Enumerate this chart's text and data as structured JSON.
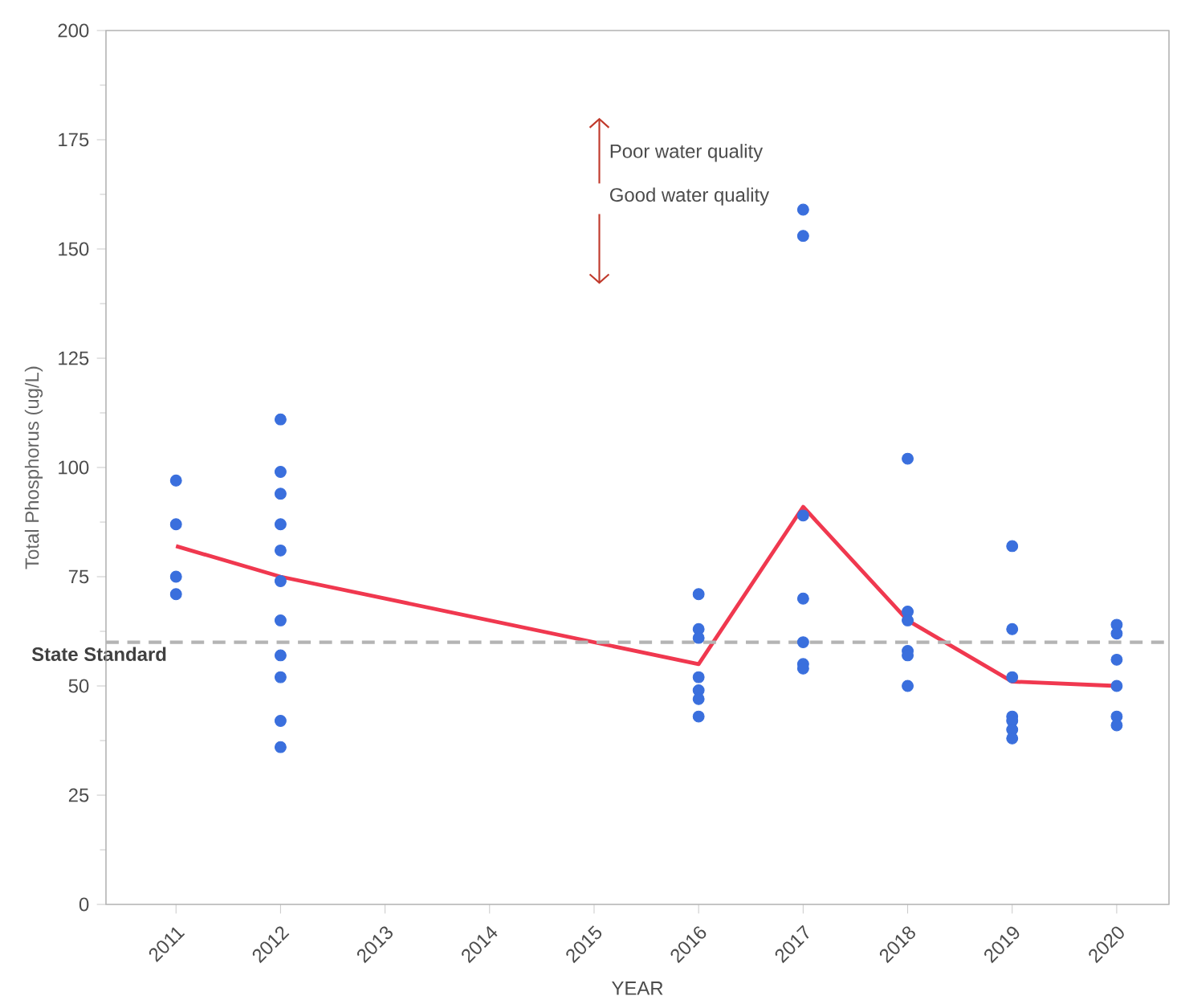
{
  "chart_data": {
    "type": "scatter",
    "xlabel": "YEAR",
    "ylabel": "Total Phosphorus (ug/L)",
    "xlim": [
      2010.33,
      2020.5
    ],
    "xticks": [
      2011,
      2012,
      2013,
      2014,
      2015,
      2016,
      2017,
      2018,
      2019,
      2020
    ],
    "ylim": [
      0,
      200
    ],
    "yticks": [
      0,
      25,
      50,
      75,
      100,
      125,
      150,
      175,
      200
    ],
    "grid": false,
    "series": [
      {
        "color": "#3a6fdd",
        "marker": "circle",
        "x": [
          2011,
          2011,
          2011,
          2011,
          2012,
          2012,
          2012,
          2012,
          2012,
          2012,
          2012,
          2012,
          2012,
          2012,
          2012,
          2016,
          2016,
          2016,
          2016,
          2016,
          2016,
          2016,
          2017,
          2017,
          2017,
          2017,
          2017,
          2017,
          2017,
          2018,
          2018,
          2018,
          2018,
          2018,
          2018,
          2019,
          2019,
          2019,
          2019,
          2019,
          2019,
          2019,
          2020,
          2020,
          2020,
          2020,
          2020,
          2020
        ],
        "values": [
          97,
          87,
          75,
          71,
          111,
          99,
          94,
          87,
          81,
          74,
          65,
          57,
          52,
          42,
          36,
          71,
          63,
          61,
          52,
          49,
          47,
          43,
          159,
          153,
          89,
          70,
          60,
          55,
          54,
          102,
          67,
          65,
          58,
          57,
          50,
          82,
          63,
          52,
          43,
          42,
          40,
          38,
          64,
          62,
          56,
          50,
          43,
          41
        ]
      },
      {
        "type": "line",
        "color": "#f0384f",
        "marker": "none",
        "line_style": "solid",
        "x": [
          2011,
          2012,
          2016,
          2017,
          2018,
          2019,
          2020
        ],
        "values": [
          82,
          75,
          55,
          91,
          65,
          51,
          50
        ]
      }
    ],
    "ref_lines": [
      {
        "axis": "y",
        "value": 60,
        "label": "State Standard",
        "color": "#b4b4b4",
        "line_style": "dashed"
      }
    ],
    "annotations": [
      "Poor water quality",
      "Good water quality"
    ]
  }
}
